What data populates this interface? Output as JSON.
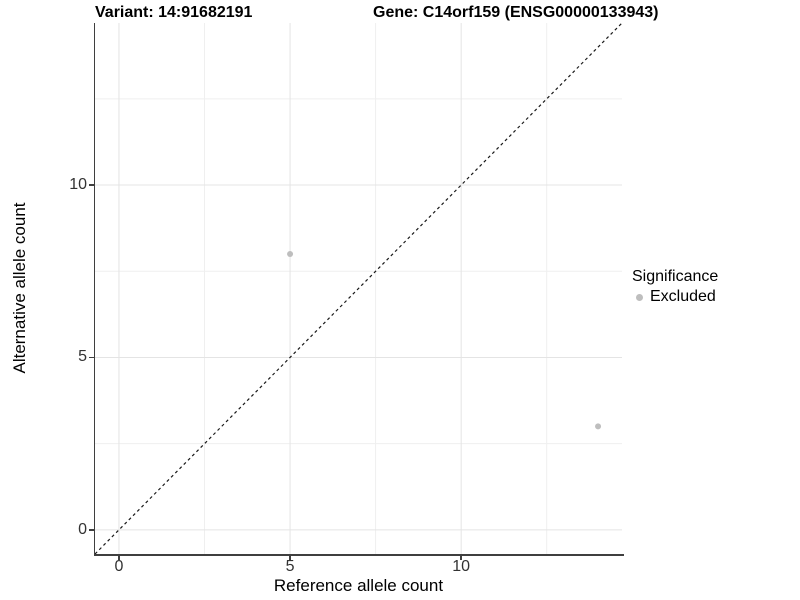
{
  "title": {
    "variant": "Variant: 14:91682191",
    "gene": "Gene: C14orf159 (ENSG00000133943)"
  },
  "chart_data": {
    "type": "scatter",
    "title": "Variant: 14:91682191 — Gene: C14orf159 (ENSG00000133943)",
    "xlabel": "Reference allele count",
    "ylabel": "Alternative allele count",
    "xlim": [
      -0.7,
      14.7
    ],
    "ylim": [
      -0.7,
      14.7
    ],
    "x_ticks": [
      0,
      5,
      10
    ],
    "y_ticks": [
      0,
      5,
      10
    ],
    "x_minor_gridlines": [
      2.5,
      7.5,
      12.5
    ],
    "y_minor_gridlines": [
      2.5,
      7.5,
      12.5
    ],
    "grid": "on",
    "identity_line": {
      "slope": 1,
      "intercept": 0,
      "style": "dashed",
      "color": "#1a1a1a"
    },
    "series": [
      {
        "name": "Excluded",
        "marker": "circle",
        "color": "#bebebe",
        "points": [
          {
            "x": 5,
            "y": 8
          },
          {
            "x": 14,
            "y": 3
          }
        ]
      }
    ],
    "legend": {
      "title": "Significance",
      "position": "right",
      "entries": [
        {
          "label": "Excluded",
          "color": "#bebebe"
        }
      ]
    },
    "colors": {
      "grid_major": "#e4e4e4",
      "grid_minor": "#efefef",
      "axis_line": "#3f3f3f",
      "tick_label": "#333333",
      "title_text": "#000000"
    }
  }
}
